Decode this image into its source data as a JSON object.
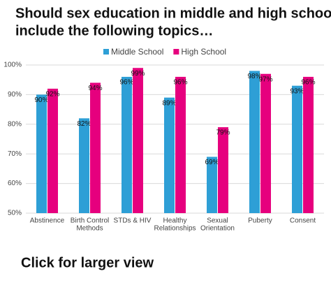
{
  "chart_data": {
    "type": "bar",
    "title": [
      "Should sex education in middle and high school",
      "include the following topics…"
    ],
    "categories": [
      [
        "Abstinence"
      ],
      [
        "Birth Control",
        "Methods"
      ],
      [
        "STDs & HIV"
      ],
      [
        "Healthy",
        "Relationships"
      ],
      [
        "Sexual",
        "Orientation"
      ],
      [
        "Puberty"
      ],
      [
        "Consent"
      ]
    ],
    "series": [
      {
        "name": "Middle School",
        "color": "#2e9fd6",
        "values": [
          90,
          82,
          96,
          89,
          69,
          98,
          93
        ],
        "value_labels": [
          "90%",
          "82%",
          "96%",
          "89%",
          "69%",
          "98%",
          "93%"
        ]
      },
      {
        "name": "High School",
        "color": "#e6007e",
        "values": [
          92,
          94,
          99,
          96,
          79,
          97,
          96
        ],
        "value_labels": [
          "92%",
          "94%",
          "99%",
          "96%",
          "79%",
          "97%",
          "96%"
        ]
      }
    ],
    "ylim": [
      50,
      100
    ],
    "yticks": [
      {
        "value": 50,
        "label": "50%"
      },
      {
        "value": 60,
        "label": "60%"
      },
      {
        "value": 70,
        "label": "70%"
      },
      {
        "value": 80,
        "label": "80%"
      },
      {
        "value": 90,
        "label": "90%"
      },
      {
        "value": 100,
        "label": "100%"
      }
    ],
    "grid": true,
    "legend": "top"
  },
  "link_text": "Click for larger view"
}
